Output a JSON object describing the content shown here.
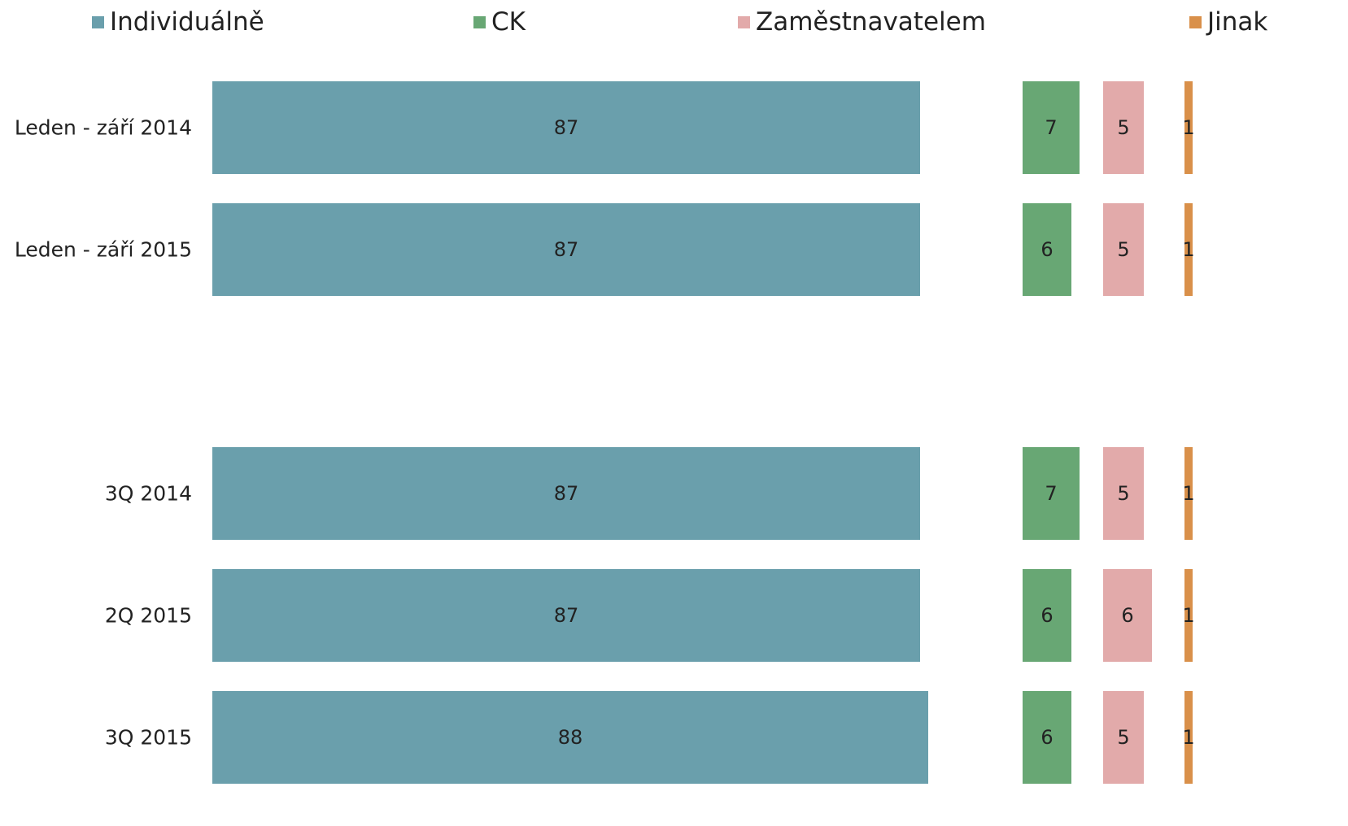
{
  "chart_data": {
    "type": "bar",
    "orientation": "horizontal",
    "layout": "panels",
    "categories": [
      "Leden - září 2014",
      "Leden - září 2015",
      null,
      "3Q 2014",
      "2Q 2015",
      "3Q 2015"
    ],
    "xlim": [
      0,
      100
    ],
    "legend": "top",
    "series": [
      {
        "name": "Individuálně",
        "color": "#6a9fac",
        "values": [
          87,
          87,
          null,
          87,
          87,
          88
        ]
      },
      {
        "name": "CK",
        "color": "#68a774",
        "values": [
          7,
          6,
          null,
          7,
          6,
          6
        ]
      },
      {
        "name": "Zaměstnavatelem",
        "color": "#e2aaaa",
        "values": [
          5,
          5,
          null,
          5,
          6,
          5
        ]
      },
      {
        "name": "Jinak",
        "color": "#d9904a",
        "values": [
          1,
          1,
          null,
          1,
          1,
          1
        ]
      }
    ]
  }
}
